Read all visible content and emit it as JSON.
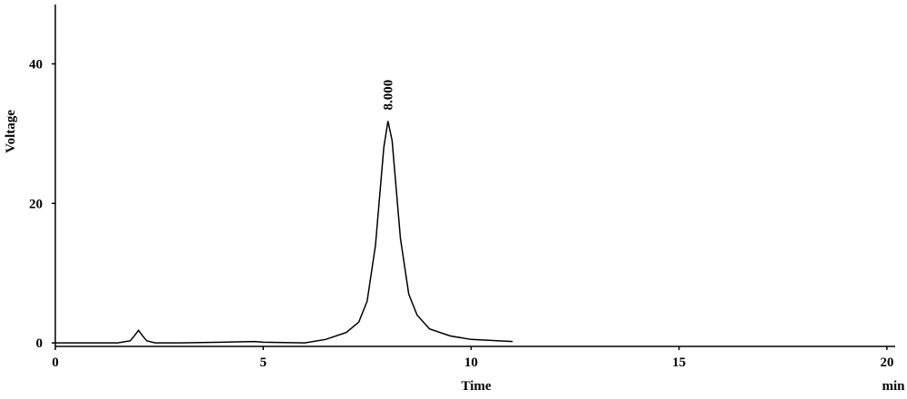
{
  "chart_data": {
    "type": "line",
    "xlabel": "Time",
    "ylabel": "Voltage",
    "xunit": "min",
    "x": [
      0,
      0.5,
      1,
      1.5,
      1.8,
      1.9,
      2.0,
      2.1,
      2.2,
      2.4,
      3,
      4,
      4.8,
      5,
      6,
      6.5,
      7,
      7.3,
      7.5,
      7.7,
      7.8,
      7.9,
      8.0,
      8.1,
      8.2,
      8.3,
      8.5,
      8.7,
      9,
      9.5,
      10,
      11
    ],
    "values": [
      0,
      0,
      0,
      0,
      0.3,
      1.0,
      1.8,
      1.0,
      0.3,
      0,
      0,
      0.1,
      0.2,
      0.1,
      0,
      0.5,
      1.5,
      3,
      6,
      14,
      21,
      28,
      31.8,
      29,
      22,
      15,
      7,
      4,
      2,
      1,
      0.5,
      0.2
    ],
    "color": "#000000",
    "xlim": [
      0,
      20.2
    ],
    "ylim": [
      -0.5,
      48.5
    ],
    "xticks": [
      0,
      5,
      10,
      15,
      20
    ],
    "yticks": [
      0,
      20,
      40
    ],
    "annotations": [
      {
        "text": "8.000",
        "x": 8,
        "y": 31.8
      }
    ]
  }
}
